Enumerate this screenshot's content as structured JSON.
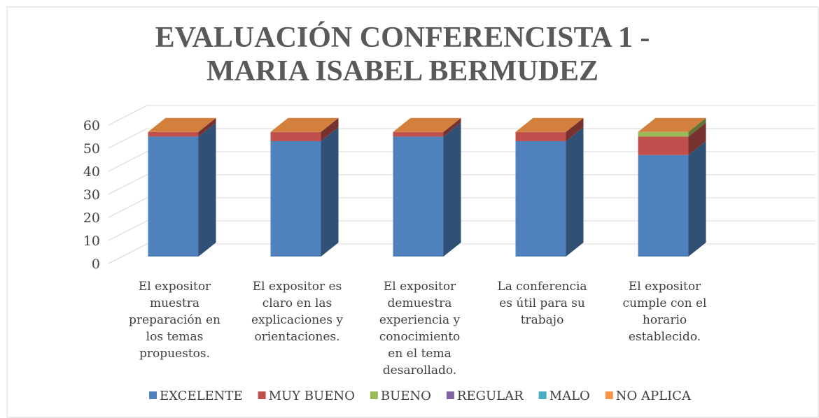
{
  "chart_data": {
    "type": "bar3d_stacked",
    "title": "EVALUACIÓN CONFERENCISTA  1 - MARIA ISABEL BERMUDEZ",
    "categories": [
      "El expositor muestra preparación en los temas propuestos.",
      "El  expositor es claro en las explicaciones y orientaciones.",
      "El expositor demuestra experiencia y conocimiento en el tema desarollado.",
      "La conferencia es útil para su trabajo",
      "El expositor cumple con el horario establecido."
    ],
    "series": [
      {
        "name": "EXCELENTE",
        "color": "#4f81bd",
        "values": [
          52,
          50,
          52,
          50,
          44
        ]
      },
      {
        "name": " MUY BUENO",
        "color": "#c0504d",
        "values": [
          2,
          4,
          2,
          4,
          8
        ]
      },
      {
        "name": "BUENO",
        "color": "#9bbb59",
        "values": [
          0,
          0,
          0,
          0,
          2
        ]
      },
      {
        "name": "REGULAR",
        "color": "#8064a2",
        "values": [
          0,
          0,
          0,
          0,
          0
        ]
      },
      {
        "name": "MALO",
        "color": "#4bacc6",
        "values": [
          0,
          0,
          0,
          0,
          0
        ]
      },
      {
        "name": "NO APLICA",
        "color": "#f79646",
        "values": [
          0,
          0,
          0,
          0,
          0
        ]
      }
    ],
    "ylim": [
      0,
      60
    ],
    "yticks": [
      0,
      10,
      20,
      30,
      40,
      50,
      60
    ],
    "grid": true,
    "legend": "bottom"
  }
}
